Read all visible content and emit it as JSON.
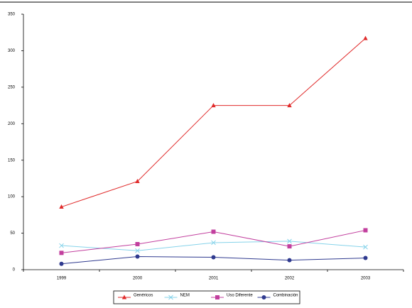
{
  "chart_data": {
    "type": "line",
    "categories": [
      "1999",
      "2000",
      "2001",
      "2002",
      "2003"
    ],
    "series": [
      {
        "name": "Genéricos",
        "color": "#e02a2a",
        "marker": "triangle",
        "values": [
          86,
          121,
          225,
          225,
          317
        ]
      },
      {
        "name": "NEM",
        "color": "#86d3ea",
        "marker": "x",
        "values": [
          33,
          26,
          37,
          39,
          31
        ]
      },
      {
        "name": "Uso Diferente",
        "color": "#c23f9e",
        "marker": "square",
        "values": [
          23,
          35,
          52,
          32,
          54
        ]
      },
      {
        "name": "Combinación",
        "color": "#2f3a8f",
        "marker": "circle",
        "values": [
          8,
          18,
          17,
          13,
          16
        ]
      }
    ],
    "ylim": [
      0,
      350
    ],
    "yticks": [
      0,
      50,
      100,
      150,
      200,
      250,
      300,
      350
    ],
    "grid": false,
    "legend": "bottom"
  }
}
